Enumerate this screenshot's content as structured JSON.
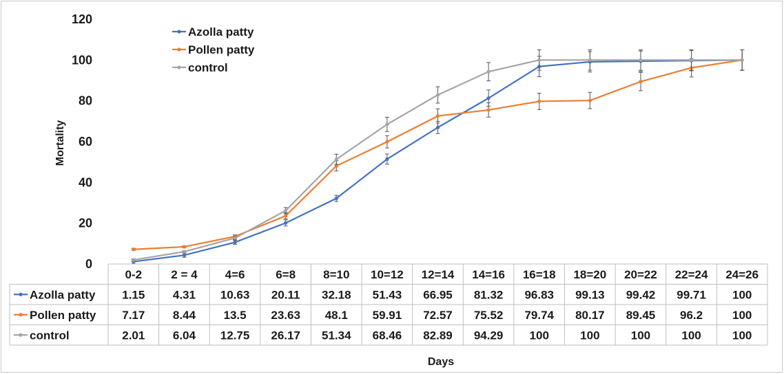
{
  "chart_data": {
    "type": "line",
    "xlabel": "Days",
    "ylabel": "Mortality",
    "ylim": [
      0,
      120
    ],
    "yticks": [
      0,
      20,
      40,
      60,
      80,
      100,
      120
    ],
    "grid": false,
    "legend_position": "top-left",
    "categories": [
      "0-2",
      "2 = 4",
      "4=6",
      "6=8",
      "8=10",
      "10=12",
      "12=14",
      "14=16",
      "16=18",
      "18=20",
      "20=22",
      "22=24",
      "24=26"
    ],
    "series": [
      {
        "name": "Azolla patty",
        "color": "#4472C4",
        "values": [
          1.15,
          4.31,
          10.63,
          20.11,
          32.18,
          51.43,
          66.95,
          81.32,
          96.83,
          99.13,
          99.42,
          99.71,
          100
        ],
        "labels": [
          "1.15",
          "4.31",
          "10.63",
          "20.11",
          "32.18",
          "51.43",
          "66.95",
          "81.32",
          "96.83",
          "99.13",
          "99.42",
          "99.71",
          "100"
        ],
        "error": [
          1,
          1,
          1,
          1.5,
          1.5,
          2.5,
          3,
          4,
          5,
          5,
          5,
          5,
          5
        ]
      },
      {
        "name": "Pollen patty",
        "color": "#ED7D31",
        "values": [
          7.17,
          8.44,
          13.5,
          23.63,
          48.1,
          59.91,
          72.57,
          75.52,
          79.74,
          80.17,
          89.45,
          96.2,
          100
        ],
        "labels": [
          "7.17",
          "8.44",
          "13.5",
          "23.63",
          "48.1",
          "59.91",
          "72.57",
          "75.52",
          "79.74",
          "80.17",
          "89.45",
          "96.2",
          "100"
        ],
        "error": [
          0.5,
          0.5,
          0.8,
          1.5,
          2.5,
          3,
          3.5,
          3.5,
          4,
          4,
          4.5,
          4.5,
          5
        ]
      },
      {
        "name": "control",
        "color": "#A5A5A5",
        "values": [
          2.01,
          6.04,
          12.75,
          26.17,
          51.34,
          68.46,
          82.89,
          94.29,
          100,
          100,
          100,
          100,
          100
        ],
        "labels": [
          "2.01",
          "6.04",
          "12.75",
          "26.17",
          "51.34",
          "68.46",
          "82.89",
          "94.29",
          "100",
          "100",
          "100",
          "100",
          "100"
        ],
        "error": [
          0.5,
          0.5,
          0.8,
          1.5,
          2.5,
          3.5,
          4,
          4.5,
          5,
          5,
          5,
          5,
          5
        ]
      }
    ]
  }
}
